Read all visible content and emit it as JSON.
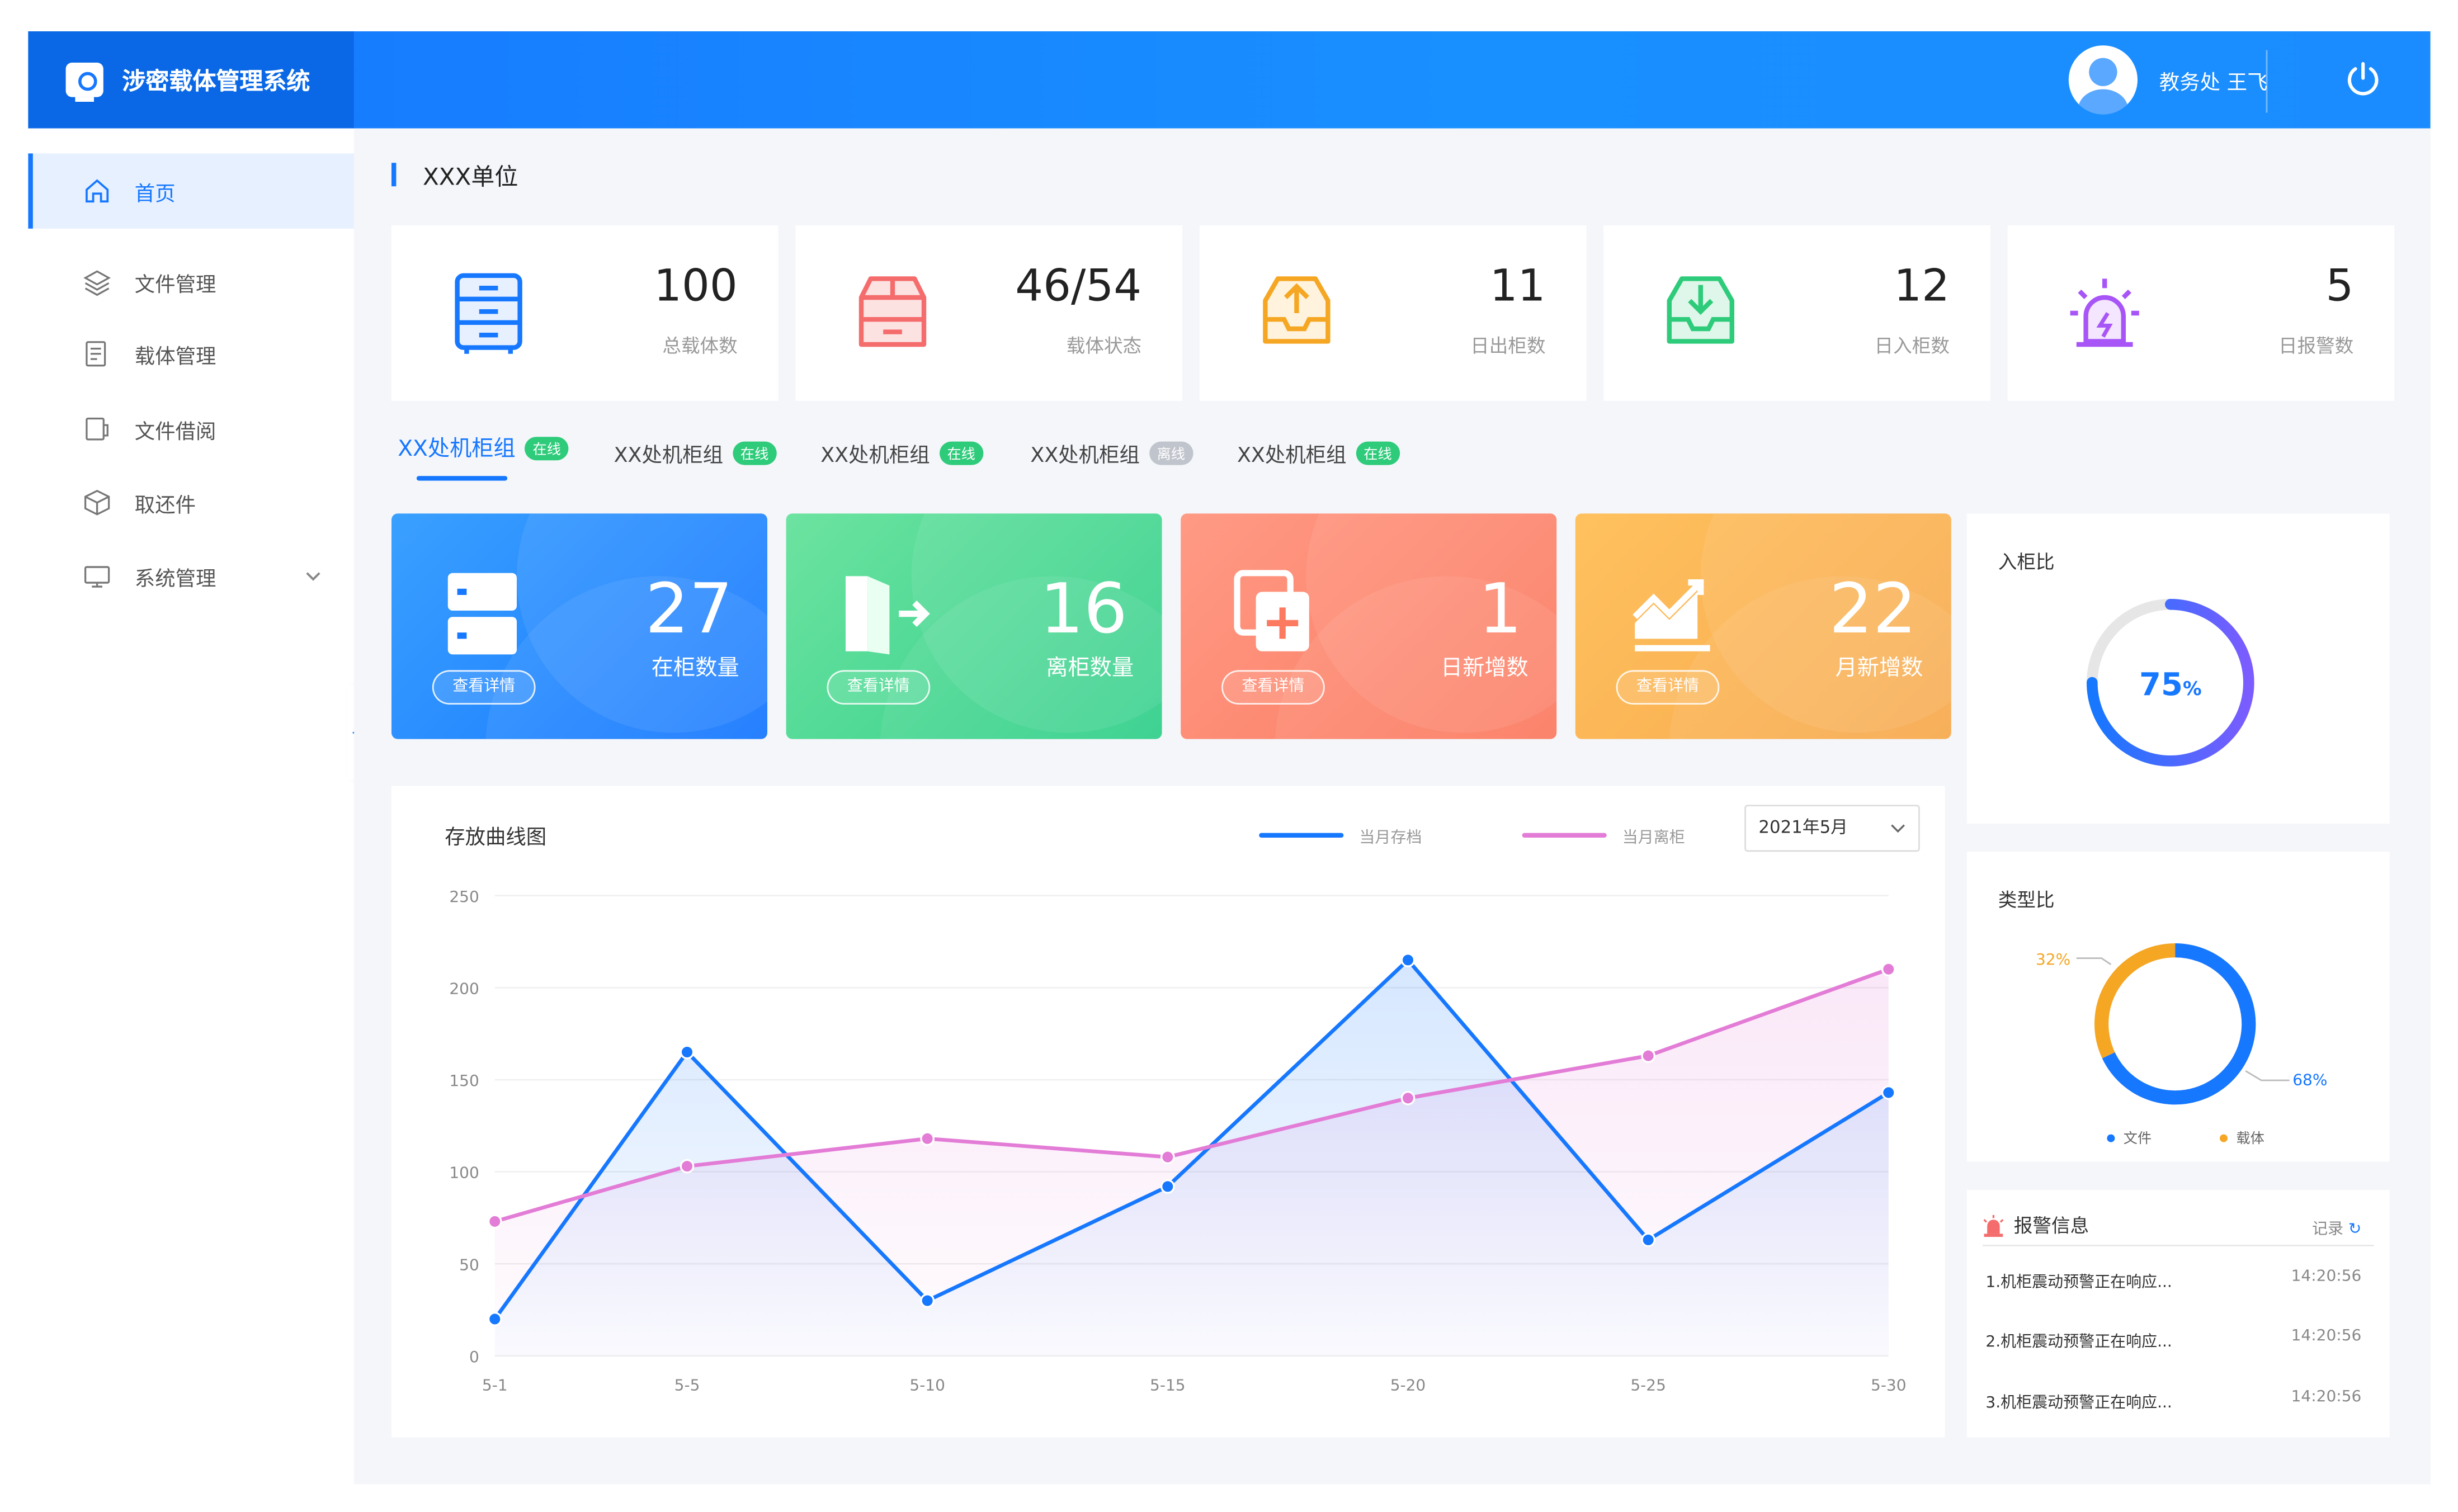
{
  "app": {
    "title": "涉密载体管理系统"
  },
  "user": {
    "name": "教务处 王飞"
  },
  "sidebar": {
    "items": [
      {
        "label": "首页",
        "icon": "home-icon"
      },
      {
        "label": "文件管理",
        "icon": "layers-icon"
      },
      {
        "label": "载体管理",
        "icon": "list-icon"
      },
      {
        "label": "文件借阅",
        "icon": "borrow-icon"
      },
      {
        "label": "取还件",
        "icon": "box-icon"
      },
      {
        "label": "系统管理",
        "icon": "monitor-icon"
      }
    ]
  },
  "page": {
    "title": "XXX单位"
  },
  "stats": [
    {
      "value": "100",
      "label": "总载体数",
      "icon": "cabinet-icon",
      "color": "#1677ff"
    },
    {
      "value": "46/54",
      "label": "载体状态",
      "icon": "box-icon",
      "color": "#f56c6c"
    },
    {
      "value": "11",
      "label": "日出柜数",
      "icon": "tray-out-icon",
      "color": "#f5a623"
    },
    {
      "value": "12",
      "label": "日入柜数",
      "icon": "tray-in-icon",
      "color": "#2ecb7a"
    },
    {
      "value": "5",
      "label": "日报警数",
      "icon": "alarm-icon",
      "color": "#a855f7"
    }
  ],
  "tabs": [
    {
      "label": "XX处机柜组",
      "status": "在线"
    },
    {
      "label": "XX处机柜组",
      "status": "在线"
    },
    {
      "label": "XX处机柜组",
      "status": "在线"
    },
    {
      "label": "XX处机柜组",
      "status": "离线"
    },
    {
      "label": "XX处机柜组",
      "status": "在线"
    }
  ],
  "cards": [
    {
      "value": "27",
      "label": "在柜数量",
      "button": "查看详情",
      "icon": "cabinet-icon"
    },
    {
      "value": "16",
      "label": "离柜数量",
      "button": "查看详情",
      "icon": "door-exit-icon"
    },
    {
      "value": "1",
      "label": "日新增数",
      "button": "查看详情",
      "icon": "add-copy-icon"
    },
    {
      "value": "22",
      "label": "月新增数",
      "button": "查看详情",
      "icon": "trend-icon"
    }
  ],
  "line_chart": {
    "title": "存放曲线图",
    "legend": [
      "当月存档",
      "当月离柜"
    ],
    "month_select": "2021年5月"
  },
  "ratio": {
    "title": "入柜比",
    "value": 75,
    "label": "75",
    "unit": "%"
  },
  "type_ratio": {
    "title": "类型比",
    "slices": [
      {
        "name": "文件",
        "value": 68,
        "label": "68%",
        "color": "#1677ff"
      },
      {
        "name": "载体",
        "value": 32,
        "label": "32%",
        "color": "#f5a623"
      }
    ]
  },
  "alarms": {
    "title": "报警信息",
    "more": "记录",
    "items": [
      {
        "text": "1.机柜震动预警正在响应...",
        "time": "14:20:56"
      },
      {
        "text": "2.机柜震动预警正在响应...",
        "time": "14:20:56"
      },
      {
        "text": "3.机柜震动预警正在响应...",
        "time": "14:20:56"
      }
    ]
  },
  "chart_data": {
    "type": "line",
    "title": "存放曲线图",
    "x": [
      "5-1",
      "5-5",
      "5-10",
      "5-15",
      "5-20",
      "5-25",
      "5-30"
    ],
    "ylim": [
      0,
      250
    ],
    "yticks": [
      0,
      50,
      100,
      150,
      200,
      250
    ],
    "series": [
      {
        "name": "当月存档",
        "color": "#1677ff",
        "points": [
          [
            1,
            20
          ],
          [
            5,
            165
          ],
          [
            10,
            30
          ],
          [
            15,
            92
          ],
          [
            20,
            215
          ],
          [
            25,
            63
          ],
          [
            30,
            143
          ]
        ]
      },
      {
        "name": "当月离柜",
        "color": "#e37cd6",
        "points": [
          [
            1,
            73
          ],
          [
            5,
            103
          ],
          [
            10,
            118
          ],
          [
            15,
            108
          ],
          [
            20,
            140
          ],
          [
            25,
            163
          ],
          [
            30,
            210
          ]
        ]
      }
    ],
    "grid": true,
    "legend": "top-right"
  }
}
